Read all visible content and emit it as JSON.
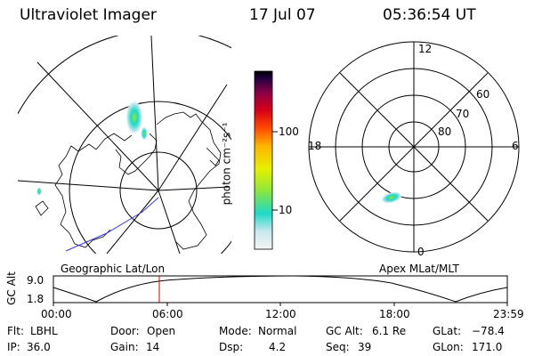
{
  "header": {
    "title": "Ultraviolet Imager",
    "date": "17 Jul 07",
    "time": "05:36:54 UT"
  },
  "colorbar": {
    "unit_label": "photon cm⁻²s⁻¹",
    "ticks": [
      "100",
      "10"
    ],
    "scale": "log",
    "colors": [
      "#f4f4f4",
      "#c8e8ee",
      "#1fd9c8",
      "#8ee63a",
      "#e6f000",
      "#ffb300",
      "#ff4a00",
      "#d6001a",
      "#8a0045",
      "#20003e",
      "#000000"
    ]
  },
  "left_map": {
    "caption": "Geographic Lat/Lon"
  },
  "right_map": {
    "caption": "Apex MLat/MLT",
    "mlt_labels": {
      "top": "12",
      "left": "18",
      "right": "6",
      "bottom": "0"
    },
    "lat_labels": [
      "60",
      "70",
      "80"
    ]
  },
  "timeline": {
    "y_label": "GC Alt",
    "y_ticks": [
      "9.0",
      "1.8"
    ],
    "x_ticks": [
      "00:00",
      "06:00",
      "12:00",
      "18:00",
      "23:59"
    ],
    "marker_time": "05:36:54",
    "marker_color": "#cc0000"
  },
  "footer": {
    "row1": [
      {
        "key": "Flt:",
        "value": "LBHL"
      },
      {
        "key": "Door:",
        "value": "Open"
      },
      {
        "key": "Mode:",
        "value": "Normal"
      },
      {
        "key": "GC Alt:",
        "value": "6.1 Re"
      },
      {
        "key": "GLat:",
        "value": "−78.4"
      }
    ],
    "row2": [
      {
        "key": "IP:",
        "value": "36.0"
      },
      {
        "key": "Gain:",
        "value": "14"
      },
      {
        "key": "Dsp:",
        "value": "4.2"
      },
      {
        "key": "Seq:",
        "value": "39"
      },
      {
        "key": "GLon:",
        "value": "171.0"
      }
    ]
  }
}
